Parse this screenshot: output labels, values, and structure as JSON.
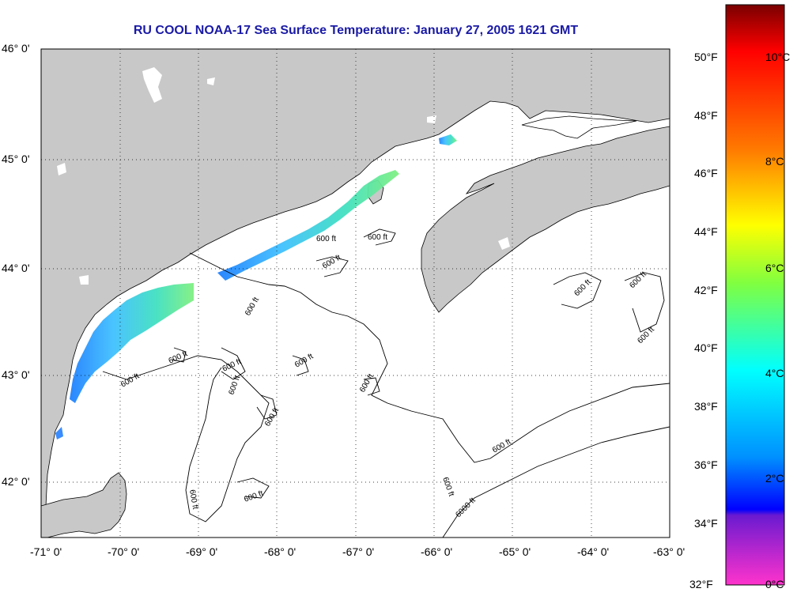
{
  "title": "RU COOL  NOAA-17  Sea Surface Temperature:  January 27, 2005 1621 GMT",
  "axes": {
    "lat_labels": [
      "46° 0'",
      "45° 0'",
      "44° 0'",
      "43° 0'",
      "42° 0'"
    ],
    "lon_labels": [
      "-71° 0'",
      "-70° 0'",
      "-69° 0'",
      "-68° 0'",
      "-67° 0'",
      "-66° 0'",
      "-65° 0'",
      "-64° 0'",
      "-63° 0'"
    ]
  },
  "contours": {
    "label": "600 ft",
    "deep_label": "6000 ft"
  },
  "colorbar": {
    "fahrenheit_labels": [
      "50°F",
      "48°F",
      "46°F",
      "44°F",
      "42°F",
      "40°F",
      "38°F",
      "36°F",
      "34°F",
      "32°F"
    ],
    "celsius_labels": [
      "10°C",
      "8°C",
      "6°C",
      "4°C",
      "2°C",
      "0°C"
    ],
    "colors": {
      "top": "#8b0000",
      "red": "#ff0000",
      "orange": "#ff8c00",
      "yellow": "#ffff00",
      "green": "#7fff00",
      "cyan": "#00ffff",
      "blue": "#0000ff",
      "purple": "#8000ff",
      "magenta": "#ff33cc"
    }
  },
  "colors": {
    "land": "#c8c8c8",
    "ocean": "#ffffff",
    "title": "#1a1aa6",
    "grid": "#000000"
  }
}
